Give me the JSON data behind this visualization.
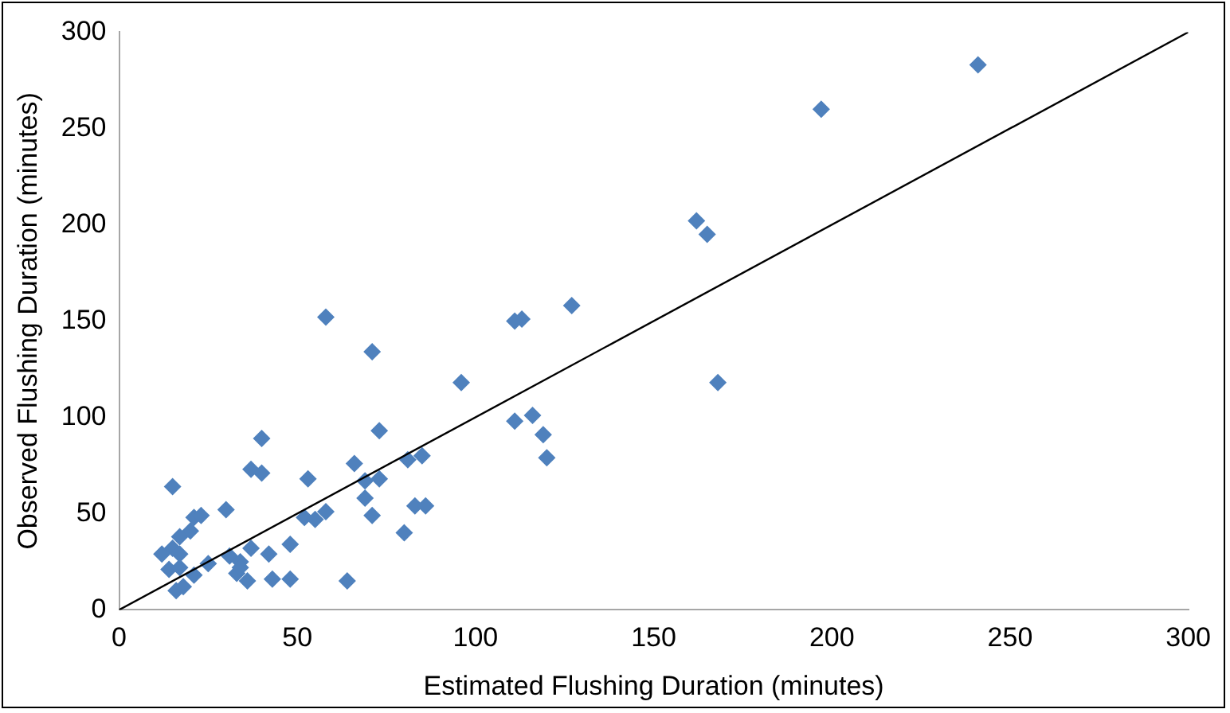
{
  "chart_data": {
    "type": "scatter",
    "xlabel": "Estimated Flushing Duration (minutes)",
    "ylabel": "Observed Flushing Duration (minutes)",
    "xlim": [
      0,
      300
    ],
    "xticks": [
      0,
      50,
      100,
      150,
      200,
      250,
      300
    ],
    "ylim": [
      0,
      300
    ],
    "yticks": [
      0,
      50,
      100,
      150,
      200,
      250,
      300
    ],
    "grid": false,
    "legend": false,
    "marker": "diamond",
    "series": [
      {
        "color": "#4f81bd",
        "x": [
          241,
          197,
          162,
          165,
          168,
          127,
          113,
          111,
          71,
          58,
          96,
          73,
          111,
          116,
          119,
          120,
          40,
          15,
          37,
          40,
          53,
          66,
          69,
          73,
          81,
          85,
          69,
          71,
          83,
          86,
          80,
          64,
          52,
          55,
          58,
          30,
          21,
          23,
          20,
          17,
          15,
          12,
          17,
          14,
          17,
          21,
          25,
          16,
          18,
          31,
          34,
          33,
          36,
          37,
          42,
          48,
          43,
          48,
          34
        ],
        "values": [
          283,
          260,
          202,
          195,
          118,
          158,
          151,
          150,
          134,
          152,
          118,
          93,
          98,
          101,
          91,
          79,
          89,
          64,
          73,
          71,
          68,
          76,
          67,
          68,
          78,
          80,
          58,
          49,
          54,
          54,
          40,
          15,
          48,
          47,
          51,
          52,
          48,
          49,
          41,
          38,
          32,
          29,
          29,
          21,
          22,
          18,
          24,
          10,
          12,
          28,
          25,
          19,
          15,
          32,
          29,
          34,
          16,
          16,
          22
        ]
      },
      {
        "type": "line",
        "marker": "none",
        "color": "#000000",
        "x": [
          0,
          300
        ],
        "values": [
          0,
          300
        ]
      }
    ]
  }
}
